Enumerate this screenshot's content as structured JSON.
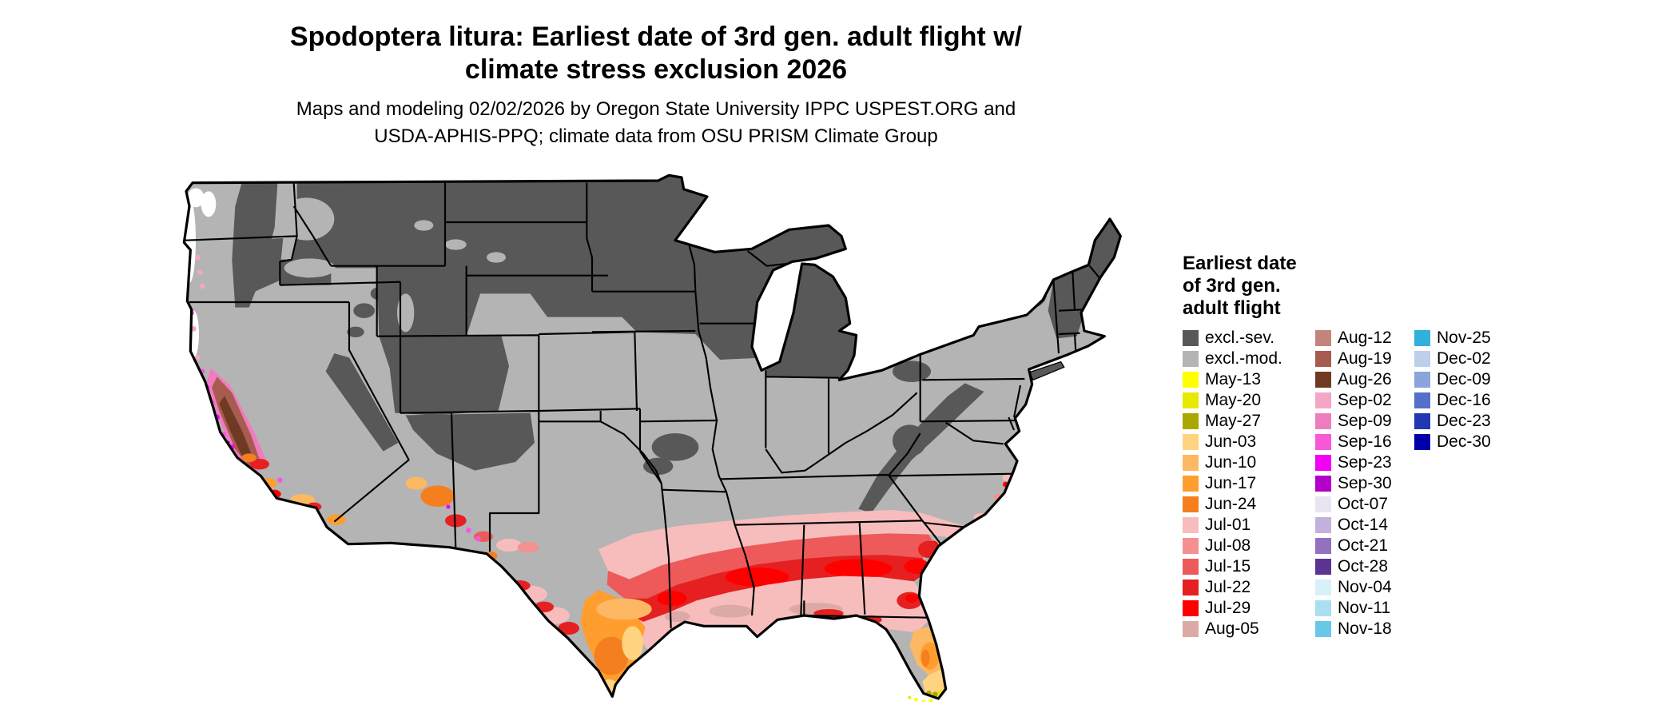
{
  "title": {
    "line1": "Spodoptera litura: Earliest date of 3rd gen. adult flight w/",
    "line2": "climate stress exclusion 2026"
  },
  "subtitle": {
    "line1": "Maps and modeling 02/02/2026 by Oregon State University IPPC USPEST.ORG and",
    "line2": "USDA-APHIS-PPQ; climate data from OSU PRISM Climate Group"
  },
  "legend": {
    "title_line1": "Earliest date",
    "title_line2": "of 3rd gen.",
    "title_line3": "adult flight",
    "columns": [
      [
        {
          "label": "excl.-sev.",
          "color": "excl_sev"
        },
        {
          "label": "excl.-mod.",
          "color": "excl_mod"
        },
        {
          "label": "May-13",
          "color": "may13"
        },
        {
          "label": "May-20",
          "color": "may20"
        },
        {
          "label": "May-27",
          "color": "may27"
        },
        {
          "label": "Jun-03",
          "color": "jun03"
        },
        {
          "label": "Jun-10",
          "color": "jun10"
        },
        {
          "label": "Jun-17",
          "color": "jun17"
        },
        {
          "label": "Jun-24",
          "color": "jun24"
        },
        {
          "label": "Jul-01",
          "color": "jul01"
        },
        {
          "label": "Jul-08",
          "color": "jul08"
        },
        {
          "label": "Jul-15",
          "color": "jul15"
        },
        {
          "label": "Jul-22",
          "color": "jul22"
        },
        {
          "label": "Jul-29",
          "color": "jul29"
        },
        {
          "label": "Aug-05",
          "color": "aug05"
        }
      ],
      [
        {
          "label": "Aug-12",
          "color": "aug12"
        },
        {
          "label": "Aug-19",
          "color": "aug19"
        },
        {
          "label": "Aug-26",
          "color": "aug26"
        },
        {
          "label": "Sep-02",
          "color": "sep02"
        },
        {
          "label": "Sep-09",
          "color": "sep09"
        },
        {
          "label": "Sep-16",
          "color": "sep16"
        },
        {
          "label": "Sep-23",
          "color": "sep23"
        },
        {
          "label": "Sep-30",
          "color": "sep30"
        },
        {
          "label": "Oct-07",
          "color": "oct07"
        },
        {
          "label": "Oct-14",
          "color": "oct14"
        },
        {
          "label": "Oct-21",
          "color": "oct21"
        },
        {
          "label": "Oct-28",
          "color": "oct28"
        },
        {
          "label": "Nov-04",
          "color": "nov04"
        },
        {
          "label": "Nov-11",
          "color": "nov11"
        },
        {
          "label": "Nov-18",
          "color": "nov18"
        }
      ],
      [
        {
          "label": "Nov-25",
          "color": "nov25"
        },
        {
          "label": "Dec-02",
          "color": "dec02"
        },
        {
          "label": "Dec-09",
          "color": "dec09"
        },
        {
          "label": "Dec-16",
          "color": "dec16"
        },
        {
          "label": "Dec-23",
          "color": "dec23"
        },
        {
          "label": "Dec-30",
          "color": "dec30"
        }
      ]
    ]
  },
  "map": {
    "name": "conus-earliest-flight-map",
    "background": "#ffffff",
    "palette": {
      "excl_sev": "#585858",
      "excl_mod": "#b4b4b4",
      "may13": "#ffff00",
      "may20": "#e8e800",
      "may27": "#a8a800",
      "jun03": "#ffd37f",
      "jun10": "#fdb863",
      "jun17": "#ff9e2e",
      "jun24": "#f57f1e",
      "jul01": "#f7bdbd",
      "jul08": "#f59090",
      "jul15": "#ee5a5a",
      "jul22": "#e62020",
      "jul29": "#ff0000",
      "aug05": "#dcaaa6",
      "aug12": "#c4847c",
      "aug19": "#a85c50",
      "aug26": "#6e3a24",
      "sep02": "#f4a6c6",
      "sep09": "#f07cc0",
      "sep16": "#f858d8",
      "sep23": "#f400f4",
      "sep30": "#b400c8",
      "oct07": "#e8e4f2",
      "oct14": "#c4b0dc",
      "oct21": "#9470c0",
      "oct28": "#5c3494",
      "nov04": "#d8f0f8",
      "nov11": "#a8e0f0",
      "nov18": "#68c8e8",
      "nov25": "#30b0dc",
      "dec02": "#bcd0ec",
      "dec09": "#8ca4dc",
      "dec16": "#5470c8",
      "dec23": "#2038b4",
      "dec30": "#0000a8",
      "white": "#ffffff"
    }
  }
}
